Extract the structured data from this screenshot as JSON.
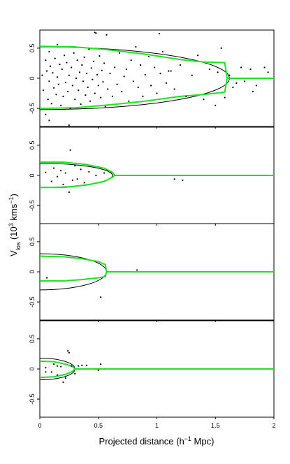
{
  "chart_data": {
    "type": "scatter",
    "xlabel_main": "Projected distance (h",
    "xlabel_sup": "−1",
    "xlabel_tail": " Mpc)",
    "ylabel_main": "V",
    "ylabel_sub": "los",
    "ylabel_mid": " (10",
    "ylabel_sup1": "3",
    "ylabel_mid2": " kms",
    "ylabel_sup2": "−1",
    "ylabel_tail": ")",
    "xlim": [
      0,
      2
    ],
    "ylim": [
      -0.8,
      0.8
    ],
    "x_ticks": [
      "0",
      "0.5",
      "1",
      "1.5",
      "2"
    ],
    "y_ticks": [
      "-0.5",
      "0",
      "0.5"
    ],
    "colors": {
      "caustic": "#22e022",
      "ellipse": "#000000",
      "points": "#000000"
    },
    "panels": [
      {
        "ellipse": {
          "a": 1.62,
          "b": 0.52
        },
        "caustic": {
          "upper": [
            [
              0,
              0.53
            ],
            [
              0.3,
              0.52
            ],
            [
              0.6,
              0.47
            ],
            [
              0.9,
              0.4
            ],
            [
              1.2,
              0.31
            ],
            [
              1.4,
              0.27
            ],
            [
              1.58,
              0.26
            ],
            [
              1.6,
              0.0
            ],
            [
              2.0,
              0.0
            ]
          ],
          "lower": [
            [
              0,
              -0.5
            ],
            [
              0.3,
              -0.49
            ],
            [
              0.6,
              -0.44
            ],
            [
              0.9,
              -0.38
            ],
            [
              1.2,
              -0.3
            ],
            [
              1.4,
              -0.27
            ],
            [
              1.58,
              -0.23
            ],
            [
              1.6,
              0.0
            ]
          ]
        },
        "points": [
          [
            0.02,
            0.05
          ],
          [
            0.03,
            -0.2
          ],
          [
            0.05,
            0.3
          ],
          [
            0.05,
            -0.6
          ],
          [
            0.06,
            0.12
          ],
          [
            0.07,
            -0.35
          ],
          [
            0.08,
            0.44
          ],
          [
            0.08,
            -0.05
          ],
          [
            0.09,
            0.2
          ],
          [
            0.1,
            -0.42
          ],
          [
            0.11,
            0.09
          ],
          [
            0.12,
            -0.16
          ],
          [
            0.13,
            0.33
          ],
          [
            0.14,
            -0.27
          ],
          [
            0.15,
            0.02
          ],
          [
            0.15,
            0.56
          ],
          [
            0.16,
            -0.1
          ],
          [
            0.17,
            0.23
          ],
          [
            0.18,
            -0.45
          ],
          [
            0.19,
            0.15
          ],
          [
            0.2,
            -0.3
          ],
          [
            0.21,
            0.38
          ],
          [
            0.22,
            -0.07
          ],
          [
            0.23,
            0.26
          ],
          [
            0.24,
            -0.22
          ],
          [
            0.25,
            0.05
          ],
          [
            0.26,
            -0.5
          ],
          [
            0.27,
            0.18
          ],
          [
            0.28,
            -0.12
          ],
          [
            0.29,
            0.42
          ],
          [
            0.3,
            -0.35
          ],
          [
            0.31,
            0.0
          ],
          [
            0.32,
            0.3
          ],
          [
            0.33,
            -0.2
          ],
          [
            0.34,
            0.1
          ],
          [
            0.35,
            -0.43
          ],
          [
            0.36,
            0.22
          ],
          [
            0.37,
            -0.05
          ],
          [
            0.38,
            0.35
          ],
          [
            0.39,
            -0.28
          ],
          [
            0.4,
            0.08
          ],
          [
            0.41,
            -0.15
          ],
          [
            0.42,
            0.48
          ],
          [
            0.43,
            -0.38
          ],
          [
            0.44,
            0.17
          ],
          [
            0.45,
            -0.02
          ],
          [
            0.46,
            0.28
          ],
          [
            0.47,
            -0.25
          ],
          [
            0.48,
            0.75
          ],
          [
            0.49,
            0.06
          ],
          [
            0.5,
            -0.12
          ],
          [
            0.51,
            0.37
          ],
          [
            0.52,
            -0.32
          ],
          [
            0.53,
            0.13
          ],
          [
            0.54,
            -0.06
          ],
          [
            0.55,
            0.25
          ],
          [
            0.56,
            -0.47
          ],
          [
            0.57,
            0.72
          ],
          [
            0.58,
            -0.18
          ],
          [
            0.6,
            0.08
          ],
          [
            0.62,
            -0.3
          ],
          [
            0.64,
            0.18
          ],
          [
            0.66,
            -0.1
          ],
          [
            0.68,
            0.42
          ],
          [
            0.7,
            -0.22
          ],
          [
            0.72,
            0.03
          ],
          [
            0.74,
            0.15
          ],
          [
            0.76,
            -0.38
          ],
          [
            0.78,
            0.3
          ],
          [
            0.8,
            -0.05
          ],
          [
            0.82,
            0.52
          ],
          [
            0.84,
            -0.15
          ],
          [
            0.86,
            0.22
          ],
          [
            0.88,
            -0.3
          ],
          [
            0.9,
            0.06
          ],
          [
            0.93,
            0.36
          ],
          [
            0.95,
            -0.12
          ],
          [
            0.98,
            0.18
          ],
          [
            1.0,
            -0.25
          ],
          [
            1.03,
            0.08
          ],
          [
            1.05,
            0.44
          ],
          [
            1.08,
            -0.08
          ],
          [
            1.1,
            0.12
          ],
          [
            1.12,
            0.12
          ],
          [
            1.15,
            -0.18
          ],
          [
            1.2,
            0.22
          ],
          [
            1.25,
            -0.3
          ],
          [
            1.3,
            0.05
          ],
          [
            1.35,
            0.38
          ],
          [
            1.4,
            -0.35
          ],
          [
            1.45,
            0.15
          ],
          [
            1.5,
            -0.45
          ],
          [
            1.52,
            0.1
          ],
          [
            1.55,
            0.5
          ],
          [
            1.58,
            -0.32
          ],
          [
            1.62,
            0.05
          ],
          [
            1.65,
            -0.15
          ],
          [
            1.68,
            -0.08
          ],
          [
            1.72,
            0.18
          ],
          [
            1.75,
            -0.05
          ],
          [
            1.8,
            0.15
          ],
          [
            1.82,
            -0.22
          ],
          [
            1.85,
            -0.12
          ],
          [
            1.92,
            0.18
          ],
          [
            1.95,
            0.1
          ],
          [
            0.08,
            -0.7
          ],
          [
            0.25,
            -0.78
          ],
          [
            0.47,
            0.76
          ],
          [
            1.02,
            0.74
          ]
        ]
      },
      {
        "ellipse": {
          "a": 0.62,
          "b": 0.2
        },
        "caustic": {
          "upper": [
            [
              0,
              0.22
            ],
            [
              0.2,
              0.22
            ],
            [
              0.4,
              0.18
            ],
            [
              0.55,
              0.12
            ],
            [
              0.62,
              0.05
            ],
            [
              0.64,
              0.0
            ],
            [
              2.0,
              0.0
            ]
          ],
          "lower": [
            [
              0,
              -0.2
            ],
            [
              0.2,
              -0.2
            ],
            [
              0.4,
              -0.16
            ],
            [
              0.55,
              -0.1
            ],
            [
              0.62,
              -0.03
            ],
            [
              0.64,
              0.0
            ]
          ]
        },
        "points": [
          [
            0.05,
            0.05
          ],
          [
            0.1,
            -0.1
          ],
          [
            0.12,
            0.12
          ],
          [
            0.15,
            -0.02
          ],
          [
            0.18,
            0.08
          ],
          [
            0.2,
            -0.15
          ],
          [
            0.22,
            0.04
          ],
          [
            0.25,
            -0.28
          ],
          [
            0.26,
            0.42
          ],
          [
            0.28,
            -0.08
          ],
          [
            0.3,
            0.16
          ],
          [
            0.32,
            -0.06
          ],
          [
            0.35,
            0.1
          ],
          [
            0.38,
            -0.12
          ],
          [
            0.42,
            0.06
          ],
          [
            0.48,
            0.0
          ],
          [
            0.55,
            0.04
          ],
          [
            1.15,
            -0.06
          ],
          [
            1.22,
            -0.08
          ]
        ]
      },
      {
        "ellipse": {
          "a": 0.57,
          "b": 0.3
        },
        "caustic": {
          "upper": [
            [
              0,
              0.26
            ],
            [
              0.2,
              0.25
            ],
            [
              0.35,
              0.22
            ],
            [
              0.5,
              0.17
            ],
            [
              0.56,
              0.12
            ],
            [
              0.57,
              0.0
            ],
            [
              2.0,
              0.0
            ]
          ],
          "lower": [
            [
              0,
              -0.15
            ],
            [
              0.2,
              -0.15
            ],
            [
              0.35,
              -0.13
            ],
            [
              0.5,
              -0.1
            ],
            [
              0.56,
              -0.08
            ],
            [
              0.57,
              0.0
            ]
          ]
        },
        "points": [
          [
            0.06,
            -0.1
          ],
          [
            0.52,
            -0.42
          ],
          [
            0.83,
            0.03
          ]
        ]
      },
      {
        "ellipse": {
          "a": 0.3,
          "b": 0.18
        },
        "caustic": {
          "upper": [
            [
              0,
              0.13
            ],
            [
              0.12,
              0.12
            ],
            [
              0.22,
              0.08
            ],
            [
              0.28,
              0.04
            ],
            [
              0.3,
              0.0
            ],
            [
              2.0,
              0.0
            ]
          ],
          "lower": [
            [
              0,
              -0.14
            ],
            [
              0.12,
              -0.13
            ],
            [
              0.22,
              -0.09
            ],
            [
              0.28,
              -0.04
            ],
            [
              0.3,
              0.0
            ]
          ]
        },
        "points": [
          [
            0.05,
            0.02
          ],
          [
            0.1,
            -0.05
          ],
          [
            0.12,
            0.08
          ],
          [
            0.15,
            -0.1
          ],
          [
            0.18,
            0.04
          ],
          [
            0.2,
            -0.22
          ],
          [
            0.22,
            -0.15
          ],
          [
            0.24,
            0.3
          ],
          [
            0.25,
            0.27
          ],
          [
            0.27,
            0.05
          ],
          [
            0.3,
            -0.08
          ],
          [
            0.33,
            0.05
          ],
          [
            0.36,
            0.06
          ],
          [
            0.4,
            0.06
          ],
          [
            0.5,
            -0.02
          ],
          [
            0.52,
            0.08
          ],
          [
            0.05,
            -0.05
          ],
          [
            0.15,
            0.05
          ]
        ]
      }
    ]
  }
}
